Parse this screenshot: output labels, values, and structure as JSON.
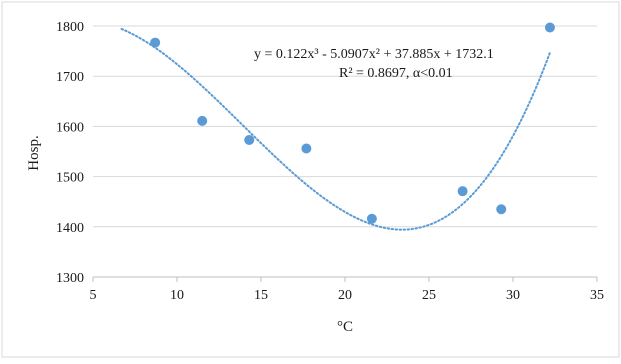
{
  "chart_data": {
    "type": "scatter",
    "title": "",
    "xlabel": "°C",
    "ylabel": "Hosp.",
    "xlim": [
      5,
      35
    ],
    "ylim": [
      1300,
      1800
    ],
    "x_ticks": [
      5,
      10,
      15,
      20,
      25,
      30,
      35
    ],
    "y_ticks": [
      1300,
      1400,
      1500,
      1600,
      1700,
      1800
    ],
    "grid": "horizontal",
    "legend": "none",
    "series": [
      {
        "points": [
          {
            "x": 8.7,
            "y": 1767
          },
          {
            "x": 11.5,
            "y": 1611
          },
          {
            "x": 14.3,
            "y": 1573
          },
          {
            "x": 17.7,
            "y": 1556
          },
          {
            "x": 21.6,
            "y": 1416
          },
          {
            "x": 27.0,
            "y": 1471
          },
          {
            "x": 29.3,
            "y": 1435
          },
          {
            "x": 32.2,
            "y": 1797
          }
        ],
        "color": "#5b9bd5"
      }
    ],
    "trendline": {
      "type": "polynomial",
      "order": 3,
      "coefficients": [
        0.122,
        -5.0907,
        37.885,
        1732.1
      ],
      "x_range": [
        6.7,
        32.2
      ],
      "color": "#5b9bd5",
      "style": "dotted",
      "equation_label": "y = 0.122x³ - 5.0907x² + 37.885x + 1732.1",
      "r2_label": "R² = 0.8697, α<0.01"
    }
  }
}
